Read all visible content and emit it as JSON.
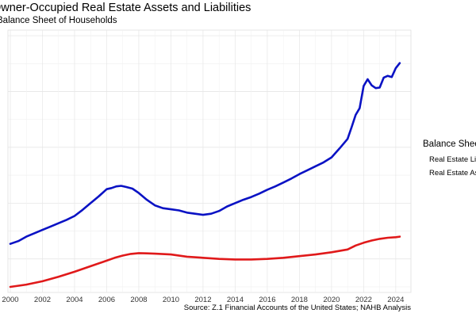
{
  "title": "Owner-Occupied Real Estate Assets and Liabilities",
  "subtitle": "Balance Sheet of Households",
  "source": "Source: Z.1 Financial Accounts of the United States; NAHB Analysis",
  "legend": {
    "title": "Balance Sheet",
    "items": [
      {
        "label": "Real Estate Liabilities",
        "color": "#e0191a"
      },
      {
        "label": "Real Estate Assets",
        "color": "#0a12c4"
      }
    ]
  },
  "chart_data": {
    "type": "line",
    "title": "Owner-Occupied Real Estate Assets and Liabilities",
    "subtitle": "Balance Sheet of Households",
    "xlabel": "",
    "ylabel": "",
    "xlim": [
      2000,
      2024.5
    ],
    "ylim": [
      4,
      51
    ],
    "xticks": [
      2000,
      2002,
      2004,
      2006,
      2008,
      2010,
      2012,
      2014,
      2016,
      2018,
      2020,
      2022,
      2024
    ],
    "grid": true,
    "legend_position": "right",
    "series": [
      {
        "name": "Real Estate Assets",
        "color": "#0a12c4",
        "x": [
          2000,
          2000.5,
          2001,
          2001.5,
          2002,
          2002.5,
          2003,
          2003.5,
          2004,
          2004.5,
          2005,
          2005.5,
          2006,
          2006.3,
          2006.6,
          2006.9,
          2007.2,
          2007.6,
          2008,
          2008.5,
          2009,
          2009.5,
          2010,
          2010.5,
          2011,
          2011.5,
          2012,
          2012.5,
          2013,
          2013.5,
          2014,
          2014.5,
          2015,
          2015.5,
          2016,
          2016.5,
          2017,
          2017.5,
          2018,
          2018.5,
          2019,
          2019.5,
          2020,
          2020.5,
          2021,
          2021.25,
          2021.5,
          2021.75,
          2022,
          2022.25,
          2022.5,
          2022.75,
          2023,
          2023.25,
          2023.5,
          2023.75,
          2024,
          2024.25
        ],
        "values": [
          12.7,
          13.2,
          14.0,
          14.6,
          15.2,
          15.8,
          16.4,
          17.0,
          17.7,
          18.8,
          20.0,
          21.2,
          22.5,
          22.7,
          23.0,
          23.1,
          22.9,
          22.6,
          21.8,
          20.6,
          19.6,
          19.1,
          18.9,
          18.7,
          18.3,
          18.1,
          17.9,
          18.1,
          18.6,
          19.4,
          20.0,
          20.6,
          21.1,
          21.7,
          22.4,
          23.0,
          23.7,
          24.4,
          25.2,
          25.9,
          26.6,
          27.3,
          28.2,
          29.8,
          31.5,
          33.6,
          35.8,
          37.0,
          41.0,
          42.2,
          41.1,
          40.6,
          40.7,
          42.5,
          42.8,
          42.6,
          44.2,
          45.1
        ]
      },
      {
        "name": "Real Estate Liabilities",
        "color": "#e0191a",
        "x": [
          2000,
          2001,
          2002,
          2003,
          2004,
          2005,
          2006,
          2006.5,
          2007,
          2007.5,
          2008,
          2008.5,
          2009,
          2010,
          2011,
          2012,
          2013,
          2014,
          2015,
          2016,
          2017,
          2018,
          2019,
          2020,
          2021,
          2021.5,
          2022,
          2022.5,
          2023,
          2023.5,
          2024,
          2024.25
        ],
        "values": [
          5.0,
          5.4,
          6.0,
          6.8,
          7.7,
          8.7,
          9.7,
          10.2,
          10.6,
          10.9,
          11.05,
          11.0,
          10.95,
          10.8,
          10.4,
          10.2,
          10.0,
          9.9,
          9.9,
          10.0,
          10.2,
          10.5,
          10.8,
          11.2,
          11.7,
          12.4,
          12.9,
          13.3,
          13.6,
          13.8,
          13.9,
          14.0
        ]
      }
    ]
  }
}
